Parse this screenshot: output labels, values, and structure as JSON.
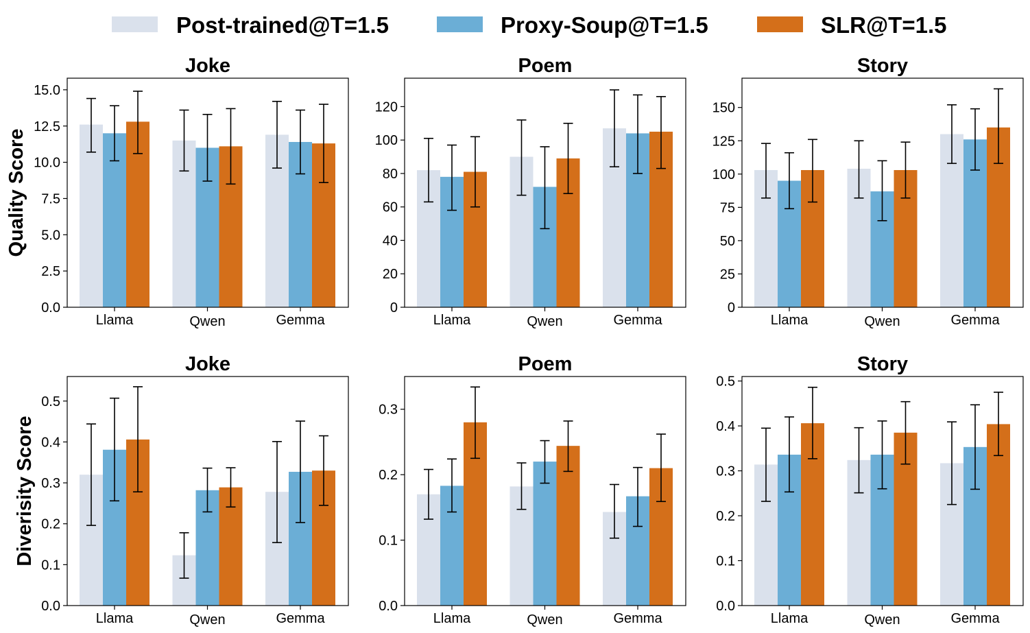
{
  "colors": {
    "post_trained": "#dae1ec",
    "proxy_soup": "#6baed6",
    "slr": "#d46f1a",
    "error_bar": "#000000"
  },
  "legend": {
    "items": [
      {
        "label": "Post-trained@T=1.5",
        "color": "#dae1ec"
      },
      {
        "label": "Proxy-Soup@T=1.5",
        "color": "#6baed6"
      },
      {
        "label": "SLR@T=1.5",
        "color": "#d46f1a"
      }
    ]
  },
  "chart_data": [
    {
      "type": "bar",
      "title": "Joke",
      "ylabel": "Quality Score",
      "categories": [
        "Llama",
        "Qwen",
        "Gemma"
      ],
      "ylim": [
        0,
        15.8
      ],
      "yticks": [
        0.0,
        2.5,
        5.0,
        7.5,
        10.0,
        12.5,
        15.0
      ],
      "ytick_labels": [
        "0.0",
        "2.5",
        "5.0",
        "7.5",
        "10.0",
        "12.5",
        "15.0"
      ],
      "series": [
        {
          "name": "Post-trained@T=1.5",
          "values": [
            12.6,
            11.5,
            11.9
          ],
          "err_low": [
            10.7,
            9.4,
            9.6
          ],
          "err_high": [
            14.4,
            13.6,
            14.2
          ]
        },
        {
          "name": "Proxy-Soup@T=1.5",
          "values": [
            12.0,
            11.0,
            11.4
          ],
          "err_low": [
            10.1,
            8.7,
            9.2
          ],
          "err_high": [
            13.9,
            13.3,
            13.6
          ]
        },
        {
          "name": "SLR@T=1.5",
          "values": [
            12.8,
            11.1,
            11.3
          ],
          "err_low": [
            10.6,
            8.5,
            8.6
          ],
          "err_high": [
            14.9,
            13.7,
            14.0
          ]
        }
      ]
    },
    {
      "type": "bar",
      "title": "Poem",
      "ylabel": "",
      "categories": [
        "Llama",
        "Qwen",
        "Gemma"
      ],
      "ylim": [
        0,
        137
      ],
      "yticks": [
        0,
        20,
        40,
        60,
        80,
        100,
        120
      ],
      "ytick_labels": [
        "0",
        "20",
        "40",
        "60",
        "80",
        "100",
        "120"
      ],
      "series": [
        {
          "name": "Post-trained@T=1.5",
          "values": [
            82,
            90,
            107
          ],
          "err_low": [
            63,
            67,
            84
          ],
          "err_high": [
            101,
            112,
            130
          ]
        },
        {
          "name": "Proxy-Soup@T=1.5",
          "values": [
            78,
            72,
            104
          ],
          "err_low": [
            58,
            47,
            80
          ],
          "err_high": [
            97,
            96,
            127
          ]
        },
        {
          "name": "SLR@T=1.5",
          "values": [
            81,
            89,
            105
          ],
          "err_low": [
            60,
            68,
            83
          ],
          "err_high": [
            102,
            110,
            126
          ]
        }
      ]
    },
    {
      "type": "bar",
      "title": "Story",
      "ylabel": "",
      "categories": [
        "Llama",
        "Qwen",
        "Gemma"
      ],
      "ylim": [
        0,
        172
      ],
      "yticks": [
        0,
        25,
        50,
        75,
        100,
        125,
        150
      ],
      "ytick_labels": [
        "0",
        "25",
        "50",
        "75",
        "100",
        "125",
        "150"
      ],
      "series": [
        {
          "name": "Post-trained@T=1.5",
          "values": [
            103,
            104,
            130
          ],
          "err_low": [
            82,
            82,
            108
          ],
          "err_high": [
            123,
            125,
            152
          ]
        },
        {
          "name": "Proxy-Soup@T=1.5",
          "values": [
            95,
            87,
            126
          ],
          "err_low": [
            74,
            65,
            103
          ],
          "err_high": [
            116,
            110,
            149
          ]
        },
        {
          "name": "SLR@T=1.5",
          "values": [
            103,
            103,
            135
          ],
          "err_low": [
            79,
            82,
            108
          ],
          "err_high": [
            126,
            124,
            164
          ]
        }
      ]
    },
    {
      "type": "bar",
      "title": "Joke",
      "ylabel": "Diverisity Score",
      "categories": [
        "Llama",
        "Qwen",
        "Gemma"
      ],
      "ylim": [
        0,
        0.56
      ],
      "yticks": [
        0.0,
        0.1,
        0.2,
        0.3,
        0.4,
        0.5
      ],
      "ytick_labels": [
        "0.0",
        "0.1",
        "0.2",
        "0.3",
        "0.4",
        "0.5"
      ],
      "series": [
        {
          "name": "Post-trained@T=1.5",
          "values": [
            0.32,
            0.123,
            0.278
          ],
          "err_low": [
            0.196,
            0.067,
            0.154
          ],
          "err_high": [
            0.444,
            0.178,
            0.401
          ]
        },
        {
          "name": "Proxy-Soup@T=1.5",
          "values": [
            0.381,
            0.282,
            0.327
          ],
          "err_low": [
            0.256,
            0.229,
            0.203
          ],
          "err_high": [
            0.507,
            0.336,
            0.451
          ]
        },
        {
          "name": "SLR@T=1.5",
          "values": [
            0.406,
            0.289,
            0.33
          ],
          "err_low": [
            0.278,
            0.241,
            0.245
          ],
          "err_high": [
            0.535,
            0.337,
            0.415
          ]
        }
      ]
    },
    {
      "type": "bar",
      "title": "Poem",
      "ylabel": "",
      "categories": [
        "Llama",
        "Qwen",
        "Gemma"
      ],
      "ylim": [
        0,
        0.35
      ],
      "yticks": [
        0.0,
        0.1,
        0.2,
        0.3
      ],
      "ytick_labels": [
        "0.0",
        "0.1",
        "0.2",
        "0.3"
      ],
      "series": [
        {
          "name": "Post-trained@T=1.5",
          "values": [
            0.17,
            0.182,
            0.143
          ],
          "err_low": [
            0.132,
            0.147,
            0.103
          ],
          "err_high": [
            0.208,
            0.218,
            0.185
          ]
        },
        {
          "name": "Proxy-Soup@T=1.5",
          "values": [
            0.183,
            0.22,
            0.167
          ],
          "err_low": [
            0.143,
            0.187,
            0.121
          ],
          "err_high": [
            0.224,
            0.252,
            0.211
          ]
        },
        {
          "name": "SLR@T=1.5",
          "values": [
            0.28,
            0.244,
            0.21
          ],
          "err_low": [
            0.225,
            0.205,
            0.159
          ],
          "err_high": [
            0.334,
            0.282,
            0.262
          ]
        }
      ]
    },
    {
      "type": "bar",
      "title": "Story",
      "ylabel": "",
      "categories": [
        "Llama",
        "Qwen",
        "Gemma"
      ],
      "ylim": [
        0,
        0.51
      ],
      "yticks": [
        0.0,
        0.1,
        0.2,
        0.3,
        0.4,
        0.5
      ],
      "ytick_labels": [
        "0.0",
        "0.1",
        "0.2",
        "0.3",
        "0.4",
        "0.5"
      ],
      "series": [
        {
          "name": "Post-trained@T=1.5",
          "values": [
            0.314,
            0.324,
            0.317
          ],
          "err_low": [
            0.232,
            0.251,
            0.225
          ],
          "err_high": [
            0.395,
            0.396,
            0.409
          ]
        },
        {
          "name": "Proxy-Soup@T=1.5",
          "values": [
            0.336,
            0.336,
            0.353
          ],
          "err_low": [
            0.253,
            0.26,
            0.259
          ],
          "err_high": [
            0.42,
            0.411,
            0.447
          ]
        },
        {
          "name": "SLR@T=1.5",
          "values": [
            0.406,
            0.385,
            0.404
          ],
          "err_low": [
            0.327,
            0.315,
            0.334
          ],
          "err_high": [
            0.486,
            0.454,
            0.475
          ]
        }
      ]
    }
  ]
}
